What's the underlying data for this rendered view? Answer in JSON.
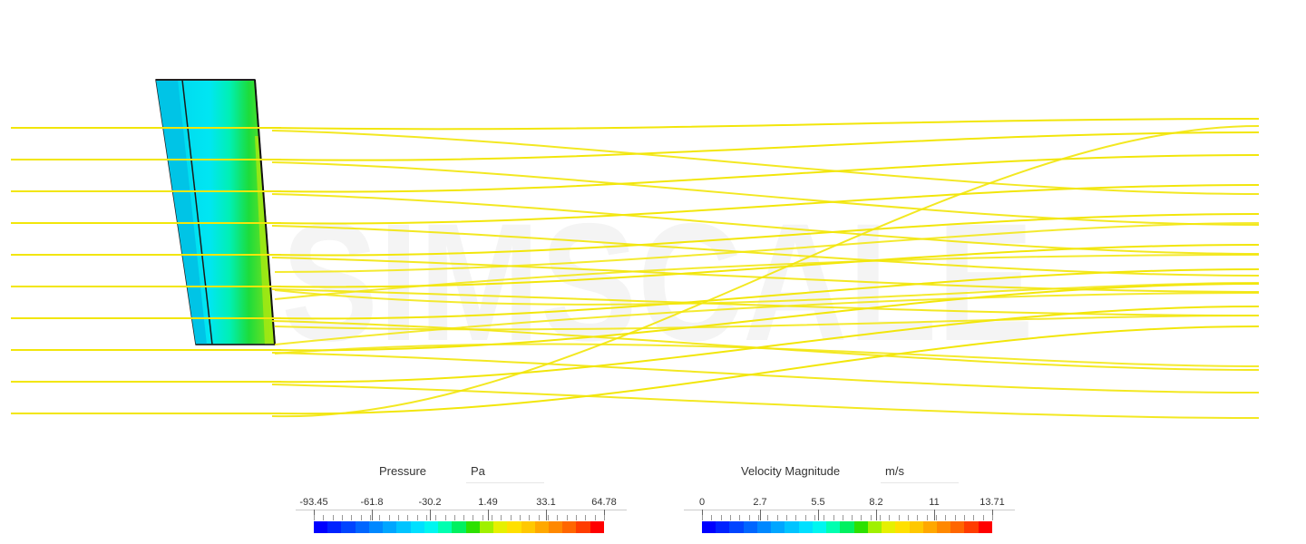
{
  "watermark": "SIMSCALE",
  "legends": {
    "pressure": {
      "title": "Pressure",
      "unit": "Pa",
      "ticks": [
        "-93.45",
        "-61.8",
        "-30.2",
        "1.49",
        "33.1",
        "64.78"
      ]
    },
    "velocity": {
      "title": "Velocity Magnitude",
      "unit": "m/s",
      "ticks": [
        "0",
        "2.7",
        "5.5",
        "8.2",
        "11",
        "13.71"
      ]
    }
  },
  "colors": {
    "streamline": "#f2e60a",
    "colormap": [
      "#0000ff",
      "#0022ff",
      "#0044ff",
      "#0066ff",
      "#0088ff",
      "#00a6ff",
      "#00c4ff",
      "#00e0ff",
      "#00f6f0",
      "#00ffb0",
      "#00f060",
      "#2de000",
      "#a0f000",
      "#e6f000",
      "#ffe000",
      "#ffc800",
      "#ffa800",
      "#ff8800",
      "#ff6600",
      "#ff3c00",
      "#ff0000"
    ]
  }
}
